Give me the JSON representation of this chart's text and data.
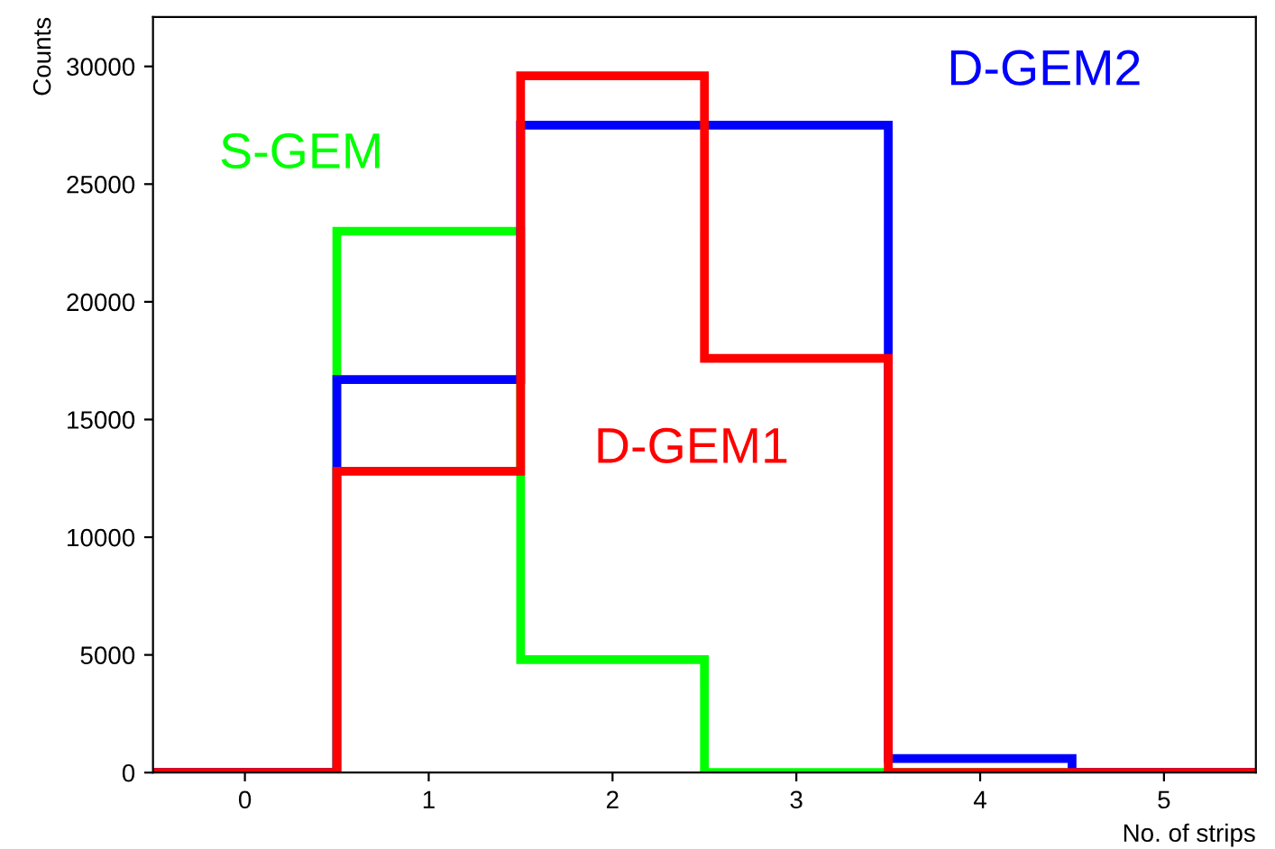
{
  "chart_data": {
    "type": "histogram",
    "xlabel": "No. of strips",
    "ylabel": "Counts",
    "bins": [
      -0.5,
      0.5,
      1.5,
      2.5,
      3.5,
      4.5,
      5.5
    ],
    "series": [
      {
        "name": "S-GEM",
        "color": "#00ff00",
        "values": [
          0,
          23000,
          4800,
          0,
          0,
          0
        ]
      },
      {
        "name": "D-GEM2",
        "color": "#0000ff",
        "values": [
          0,
          16700,
          27500,
          27500,
          600,
          0
        ]
      },
      {
        "name": "D-GEM1",
        "color": "#ff0000",
        "values": [
          0,
          12800,
          29600,
          17600,
          0,
          0
        ]
      }
    ],
    "xlim": [
      -0.5,
      5.5
    ],
    "xticks": [
      0,
      1,
      2,
      3,
      4,
      5
    ],
    "ylim": [
      0,
      32100
    ],
    "yticks": [
      0,
      5000,
      10000,
      15000,
      20000,
      25000,
      30000
    ],
    "grid": false,
    "legend": false
  }
}
